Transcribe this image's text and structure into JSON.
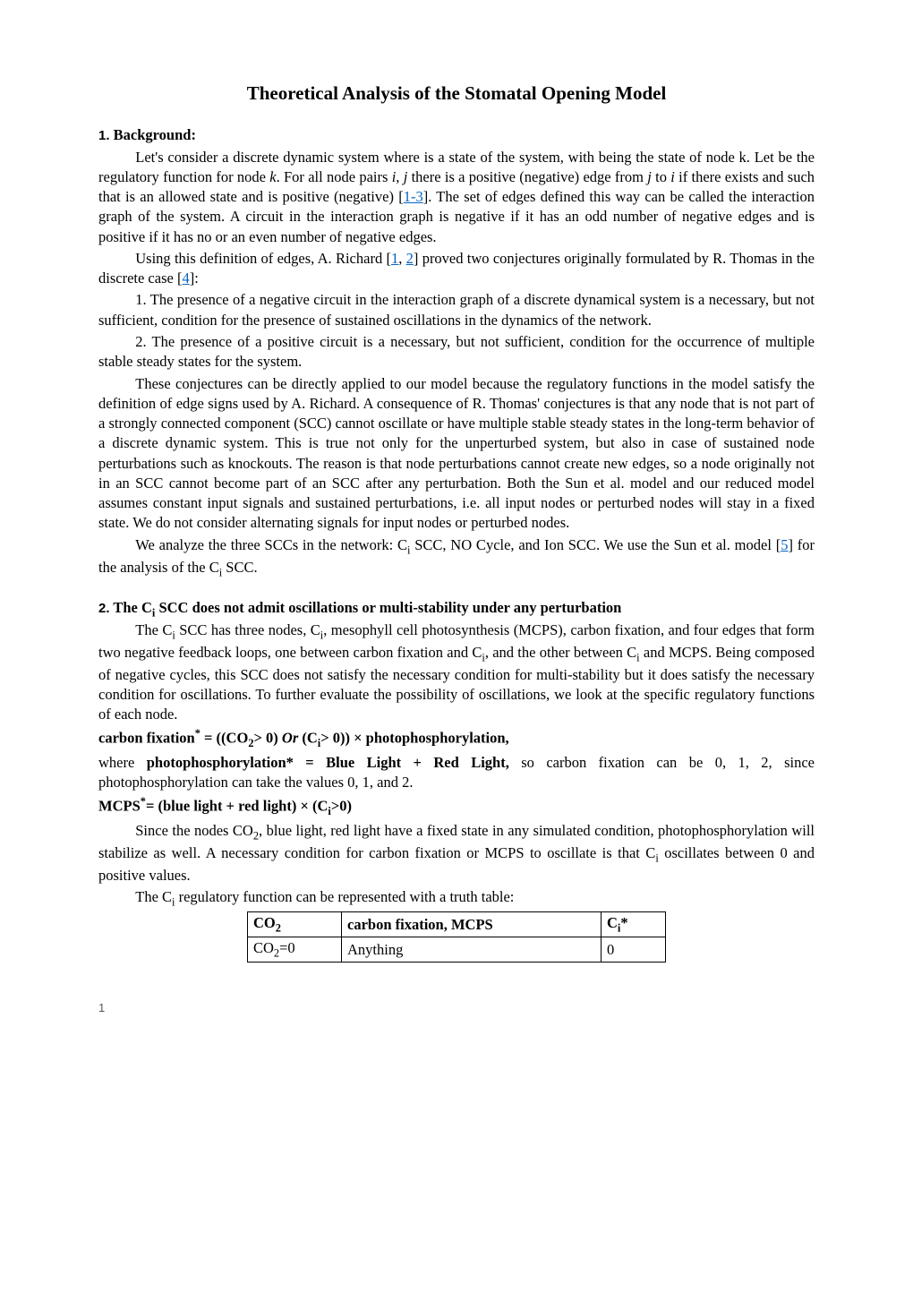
{
  "title": "Theoretical Analysis of the Stomatal Opening Model",
  "section1": {
    "number": "1.",
    "heading": "Background:",
    "p1a": "Let's consider a discrete dynamic system where is a state of the system, with being the state of node k. Let be the regulatory function for node ",
    "p1_k": "k",
    "p1b": ". For all node pairs ",
    "p1_i": "i",
    "p1c": ", ",
    "p1_j": "j",
    "p1d": " there is a positive (negative) edge from ",
    "p1_j2": "j",
    "p1e": " to ",
    "p1_i2": "i",
    "p1f": " if there exists and  such that is an allowed state and  is positive (negative) [",
    "p1_cite1": "1-3",
    "p1g": "]. The set of edges defined this way can be called the interaction graph of the system. A circuit in the interaction graph is negative if it has an odd number of negative edges and is positive if it has no or an even number of negative edges.",
    "p2a": "Using this definition of edges, A. Richard [",
    "p2_cite1": "1",
    "p2b": ", ",
    "p2_cite2": "2",
    "p2c": "] proved two conjectures originally formulated by R. Thomas in the discrete case [",
    "p2_cite3": "4",
    "p2d": "]:",
    "p3": "1. The presence of a negative circuit in the interaction graph of a discrete dynamical system is a necessary, but not sufficient, condition for the presence of sustained oscillations in the dynamics of the network.",
    "p4": "2. The presence of a positive circuit is a necessary, but not sufficient, condition for the occurrence of multiple stable steady states for the system.",
    "p5": "These conjectures can be directly applied to our model because the regulatory functions in the model satisfy the definition of edge signs used by A. Richard. A consequence of R. Thomas' conjectures is that any node that is not part of a strongly connected component (SCC) cannot oscillate or have multiple stable steady states in the long-term behavior of a discrete dynamic system. This is true not only for the unperturbed system, but also in case of sustained node perturbations such as knockouts. The reason is that node perturbations cannot create new edges, so a node originally not in an SCC cannot become part of an SCC after any perturbation. Both the Sun et al. model and our reduced model assumes constant input signals and sustained perturbations, i.e. all input nodes or perturbed nodes will stay in a fixed state. We do not consider alternating signals for input nodes or perturbed nodes.",
    "p6a": "We analyze the three SCCs in the network: C",
    "p6_sub1": "i",
    "p6b": " SCC, NO Cycle, and Ion SCC. We use the Sun et al. model [",
    "p6_cite1": "5",
    "p6c": "] for the analysis of the C",
    "p6_sub2": "i",
    "p6d": " SCC."
  },
  "section2": {
    "number": "2.",
    "heading_a": "The C",
    "heading_sub": "i",
    "heading_b": " SCC does not admit oscillations or multi-stability under any perturbation",
    "p1a": "The C",
    "p1_sub1": "i",
    "p1b": " SCC has three nodes, C",
    "p1_sub2": "i",
    "p1c": ", mesophyll cell photosynthesis (MCPS), carbon fixation, and four edges that form two negative feedback loops, one between carbon fixation and C",
    "p1_sub3": "i",
    "p1d": ", and the other between C",
    "p1_sub4": "i",
    "p1e": " and MCPS. Being composed of negative cycles, this SCC does not satisfy the necessary condition for multi-stability but it does satisfy the necessary condition for oscillations. To further evaluate the possibility of oscillations, we look at the specific regulatory functions of each node.",
    "f1_a": "carbon fixation",
    "f1_sup": "*",
    "f1_b": " = ((CO",
    "f1_sub1": "2",
    "f1_c": "> 0) ",
    "f1_or": "Or",
    "f1_d": " (C",
    "f1_sub2": "i",
    "f1_e": "> 0)) × photophosphorylation,",
    "p2a": "where ",
    "p2b": "photophosphorylation* = Blue Light + Red Light,",
    "p2c": " so carbon fixation can be 0, 1, 2, since photophosphorylation can take the values 0, 1, and 2.",
    "f2_a": "MCPS",
    "f2_sup": "*",
    "f2_b": "= (blue light + red light) × (C",
    "f2_sub": "i",
    "f2_c": ">0)",
    "p3a": "Since the nodes CO",
    "p3_sub1": "2",
    "p3b": ", blue light, red light have a fixed state in any simulated condition, photophosphorylation will stabilize as well. A necessary condition for carbon fixation or MCPS to oscillate is that C",
    "p3_sub2": "i",
    "p3c": " oscillates between 0 and positive values.",
    "p4a": "The C",
    "p4_sub": "i",
    "p4b": " regulatory function can be represented with a truth table:"
  },
  "table": {
    "h1a": "CO",
    "h1_sub": "2",
    "h2": "carbon fixation, MCPS",
    "h3a": "C",
    "h3_sub": "i",
    "h3b": "*",
    "r1c1a": "CO",
    "r1c1_sub": "2",
    "r1c1b": "=0",
    "r1c2": "Anything",
    "r1c3": "0"
  },
  "pageNumber": "1"
}
